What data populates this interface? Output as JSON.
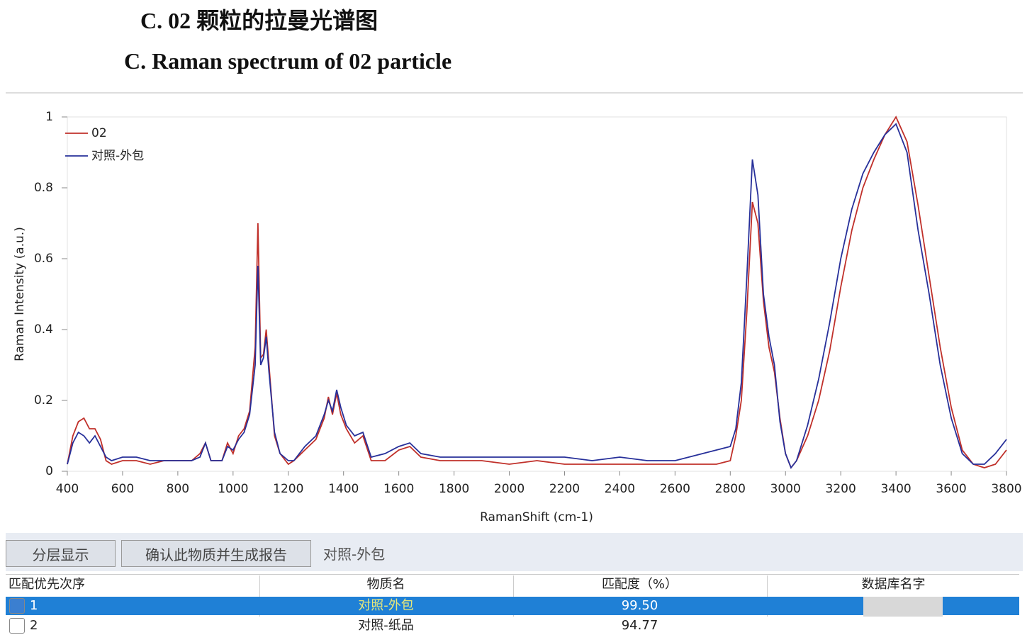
{
  "header": {
    "title_cn": "C.   02 颗粒的拉曼光谱图",
    "title_en": "C. Raman spectrum of 02 particle"
  },
  "chart_data": {
    "type": "line",
    "xlabel": "RamanShift (cm-1)",
    "ylabel": "Raman Intensity (a.u.)",
    "x": [
      400,
      420,
      440,
      460,
      480,
      500,
      520,
      540,
      560,
      600,
      650,
      700,
      750,
      800,
      850,
      880,
      900,
      920,
      960,
      980,
      1000,
      1020,
      1040,
      1060,
      1080,
      1090,
      1100,
      1110,
      1120,
      1130,
      1150,
      1170,
      1200,
      1220,
      1260,
      1300,
      1330,
      1345,
      1360,
      1375,
      1390,
      1410,
      1440,
      1470,
      1500,
      1550,
      1600,
      1640,
      1680,
      1750,
      1800,
      1900,
      2000,
      2100,
      2200,
      2300,
      2400,
      2500,
      2600,
      2700,
      2750,
      2800,
      2820,
      2840,
      2860,
      2880,
      2900,
      2920,
      2940,
      2960,
      2980,
      3000,
      3020,
      3040,
      3080,
      3120,
      3160,
      3200,
      3240,
      3280,
      3320,
      3360,
      3400,
      3440,
      3480,
      3520,
      3560,
      3600,
      3640,
      3680,
      3720,
      3760,
      3800
    ],
    "series": [
      {
        "name": "02",
        "color": "#c0302a",
        "values": [
          0.02,
          0.1,
          0.14,
          0.15,
          0.12,
          0.12,
          0.09,
          0.03,
          0.02,
          0.03,
          0.03,
          0.02,
          0.03,
          0.03,
          0.03,
          0.05,
          0.08,
          0.03,
          0.03,
          0.08,
          0.05,
          0.1,
          0.12,
          0.17,
          0.35,
          0.7,
          0.32,
          0.33,
          0.4,
          0.3,
          0.1,
          0.05,
          0.02,
          0.03,
          0.06,
          0.09,
          0.15,
          0.21,
          0.16,
          0.22,
          0.16,
          0.12,
          0.08,
          0.1,
          0.03,
          0.03,
          0.06,
          0.07,
          0.04,
          0.03,
          0.03,
          0.03,
          0.02,
          0.03,
          0.02,
          0.02,
          0.02,
          0.02,
          0.02,
          0.02,
          0.02,
          0.03,
          0.1,
          0.2,
          0.45,
          0.76,
          0.7,
          0.48,
          0.35,
          0.28,
          0.15,
          0.05,
          0.01,
          0.03,
          0.1,
          0.2,
          0.34,
          0.52,
          0.68,
          0.8,
          0.88,
          0.95,
          1.0,
          0.93,
          0.75,
          0.55,
          0.35,
          0.18,
          0.06,
          0.02,
          0.01,
          0.02,
          0.06
        ]
      },
      {
        "name": "对照-外包",
        "color": "#27309a",
        "values": [
          0.02,
          0.08,
          0.11,
          0.1,
          0.08,
          0.1,
          0.07,
          0.04,
          0.03,
          0.04,
          0.04,
          0.03,
          0.03,
          0.03,
          0.03,
          0.04,
          0.08,
          0.03,
          0.03,
          0.07,
          0.06,
          0.09,
          0.11,
          0.16,
          0.3,
          0.58,
          0.3,
          0.32,
          0.38,
          0.28,
          0.11,
          0.05,
          0.03,
          0.03,
          0.07,
          0.1,
          0.16,
          0.2,
          0.17,
          0.23,
          0.18,
          0.13,
          0.1,
          0.11,
          0.04,
          0.05,
          0.07,
          0.08,
          0.05,
          0.04,
          0.04,
          0.04,
          0.04,
          0.04,
          0.04,
          0.03,
          0.04,
          0.03,
          0.03,
          0.05,
          0.06,
          0.07,
          0.12,
          0.25,
          0.55,
          0.88,
          0.78,
          0.5,
          0.38,
          0.3,
          0.14,
          0.05,
          0.01,
          0.03,
          0.13,
          0.26,
          0.42,
          0.6,
          0.74,
          0.84,
          0.9,
          0.95,
          0.98,
          0.9,
          0.68,
          0.5,
          0.3,
          0.15,
          0.05,
          0.02,
          0.02,
          0.05,
          0.09
        ]
      }
    ],
    "xlim": [
      400,
      3800
    ],
    "ylim": [
      0,
      1
    ],
    "xticks": [
      400,
      600,
      800,
      1000,
      1200,
      1400,
      1600,
      1800,
      2000,
      2200,
      2400,
      2600,
      2800,
      3000,
      3200,
      3400,
      3600,
      3800
    ],
    "yticks": [
      0,
      0.2,
      0.4,
      0.6,
      0.8,
      1
    ],
    "grid": false
  },
  "toolbar": {
    "buttons": [
      "分层显示",
      "确认此物质并生成报告"
    ],
    "selected": "对照-外包"
  },
  "table": {
    "columns": [
      "匹配优先次序",
      "物质名",
      "匹配度（%）",
      "数据库名字"
    ],
    "rows": [
      [
        "1",
        "对照-外包",
        "99.50"
      ],
      [
        "2",
        "对照-纸品",
        "94.77"
      ]
    ]
  }
}
